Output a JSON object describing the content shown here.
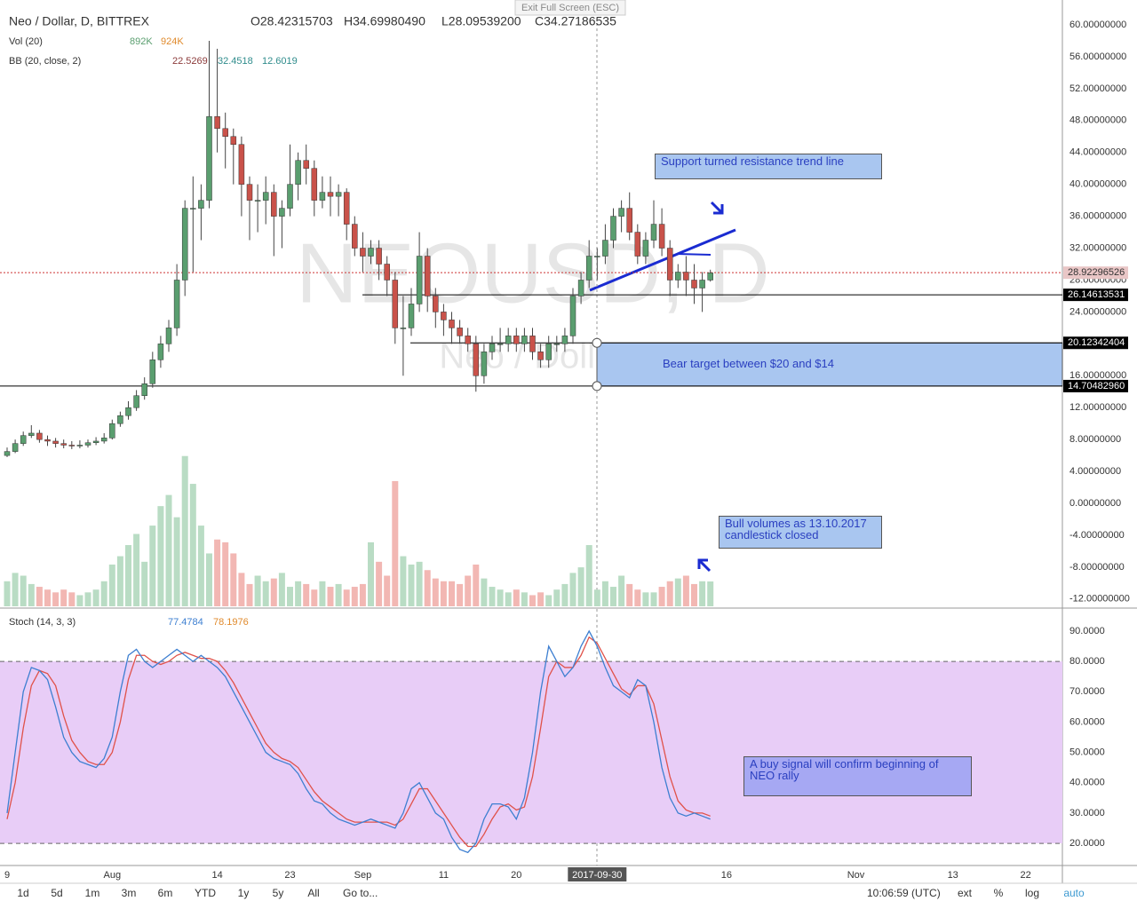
{
  "window": {
    "exit_fullscreen": "Exit Full Screen (ESC)"
  },
  "chart_data": {
    "type": "candlestick",
    "title": "Neo / Dollar, D, BITTREX",
    "watermark": "NEOUSD, D",
    "watermark_sub": "Neo / Dollar",
    "ohlc_legend": [
      "O28.42315703",
      "H34.69980490",
      "L28.09539200",
      "C34.27186535"
    ],
    "volume_legend": {
      "label": "Vol (20)",
      "values": [
        "892K",
        "924K"
      ]
    },
    "bb_legend": {
      "label": "BB (20, close, 2)",
      "values": [
        "22.5269",
        "32.4518",
        "12.6019"
      ]
    },
    "up_color": "#5a9e6f",
    "down_color": "#c9524a",
    "candles": [
      [
        6,
        7,
        5.8,
        6.5
      ],
      [
        6.5,
        8,
        6.3,
        7.5
      ],
      [
        7.5,
        9,
        7.2,
        8.5
      ],
      [
        8.5,
        9.8,
        8.2,
        8.8
      ],
      [
        8.8,
        9.2,
        7.6,
        8
      ],
      [
        8,
        8.5,
        7.2,
        7.8
      ],
      [
        7.8,
        8.2,
        7,
        7.5
      ],
      [
        7.5,
        8,
        6.9,
        7.3
      ],
      [
        7.3,
        7.8,
        6.8,
        7.2
      ],
      [
        7.2,
        7.9,
        6.9,
        7.3
      ],
      [
        7.3,
        8,
        7,
        7.6
      ],
      [
        7.6,
        8.3,
        7.3,
        7.8
      ],
      [
        7.8,
        8.8,
        7.5,
        8.2
      ],
      [
        8.2,
        10.5,
        8,
        10
      ],
      [
        10,
        11.5,
        9.6,
        11
      ],
      [
        11,
        12.8,
        10.5,
        12
      ],
      [
        12,
        14.2,
        11.6,
        13.5
      ],
      [
        13.5,
        15.8,
        13,
        15
      ],
      [
        15,
        19,
        14.5,
        18
      ],
      [
        18,
        21,
        17,
        20
      ],
      [
        20,
        23,
        19,
        22
      ],
      [
        22,
        30,
        21,
        28
      ],
      [
        28,
        38,
        26,
        37
      ],
      [
        37,
        41,
        29,
        37
      ],
      [
        37,
        40,
        33,
        38
      ],
      [
        38,
        58,
        37,
        48.5
      ],
      [
        48.5,
        57,
        44,
        47
      ],
      [
        47,
        49,
        42,
        46
      ],
      [
        46,
        47,
        40,
        45
      ],
      [
        45,
        46,
        36,
        40
      ],
      [
        40,
        41,
        33,
        38
      ],
      [
        38,
        40,
        34,
        38
      ],
      [
        38,
        41,
        35,
        39
      ],
      [
        39,
        40,
        31,
        36
      ],
      [
        36,
        38,
        32,
        37
      ],
      [
        37,
        45,
        36,
        40
      ],
      [
        40,
        44,
        38,
        43
      ],
      [
        43,
        45,
        40,
        42
      ],
      [
        42,
        43,
        36,
        38
      ],
      [
        38,
        41,
        37,
        39
      ],
      [
        39,
        41,
        36,
        38.5
      ],
      [
        38.5,
        40,
        36,
        39
      ],
      [
        39,
        39.5,
        33,
        35
      ],
      [
        35,
        36,
        31,
        32
      ],
      [
        32,
        34,
        29,
        31
      ],
      [
        31,
        33,
        30,
        32
      ],
      [
        32,
        33,
        28,
        30
      ],
      [
        30,
        31,
        26,
        28
      ],
      [
        28,
        29,
        20,
        22
      ],
      [
        22,
        26,
        16,
        22
      ],
      [
        22,
        27,
        21,
        25
      ],
      [
        25,
        34,
        24,
        31
      ],
      [
        31,
        32,
        24,
        26
      ],
      [
        26,
        27,
        22,
        24
      ],
      [
        24,
        25,
        21,
        23
      ],
      [
        23,
        24,
        20,
        22
      ],
      [
        22,
        23,
        20,
        21
      ],
      [
        21,
        22,
        19,
        20
      ],
      [
        20,
        21,
        14,
        16
      ],
      [
        16,
        20,
        15,
        19
      ],
      [
        19,
        21,
        18,
        20
      ],
      [
        20,
        22,
        19,
        20
      ],
      [
        20,
        22,
        19,
        21
      ],
      [
        21,
        22,
        19,
        20
      ],
      [
        20,
        22,
        19,
        21
      ],
      [
        21,
        22,
        18,
        19
      ],
      [
        19,
        20,
        17,
        18
      ],
      [
        18,
        21,
        17,
        20
      ],
      [
        20,
        21,
        19,
        20
      ],
      [
        20,
        22,
        19,
        21
      ],
      [
        21,
        27,
        20,
        26
      ],
      [
        26,
        29,
        25,
        28
      ],
      [
        28,
        33,
        27,
        31
      ],
      [
        31,
        32,
        28,
        31
      ],
      [
        31,
        35,
        30,
        33
      ],
      [
        33,
        37,
        32,
        36
      ],
      [
        36,
        38,
        34,
        37
      ],
      [
        37,
        39,
        33,
        34
      ],
      [
        34,
        35,
        30,
        31
      ],
      [
        31,
        34,
        30,
        33
      ],
      [
        33,
        38,
        32,
        35
      ],
      [
        35,
        37,
        31,
        32
      ],
      [
        32,
        33,
        26,
        28
      ],
      [
        28,
        30,
        27,
        29
      ],
      [
        29,
        31,
        26,
        28
      ],
      [
        28,
        30,
        25,
        27
      ],
      [
        27,
        29,
        24,
        28
      ],
      [
        28,
        29.3,
        27.8,
        28.9
      ]
    ],
    "volume": [
      900,
      1200,
      1100,
      800,
      700,
      600,
      500,
      600,
      500,
      400,
      500,
      600,
      900,
      1500,
      1800,
      2200,
      2600,
      1600,
      2900,
      3600,
      4000,
      3200,
      5400,
      4400,
      2900,
      1900,
      2400,
      2300,
      1900,
      1200,
      800,
      1100,
      900,
      1000,
      1200,
      700,
      900,
      800,
      600,
      900,
      700,
      800,
      600,
      700,
      800,
      2300,
      1600,
      1100,
      4500,
      1800,
      1500,
      1600,
      1300,
      1000,
      900,
      900,
      800,
      1100,
      1500,
      1000,
      700,
      600,
      500,
      600,
      500,
      400,
      500,
      400,
      600,
      800,
      1200,
      1400,
      2200,
      600,
      900,
      700,
      1100,
      800,
      600,
      500,
      500,
      700,
      900,
      1000,
      1100,
      800,
      900,
      892
    ],
    "ylim": [
      -12.91,
      62.56
    ],
    "yticks": [
      {
        "value": 60,
        "label": "60.00000000"
      },
      {
        "value": 56,
        "label": "56.00000000"
      },
      {
        "value": 52,
        "label": "52.00000000"
      },
      {
        "value": 48,
        "label": "48.00000000"
      },
      {
        "value": 44,
        "label": "44.00000000"
      },
      {
        "value": 40,
        "label": "40.00000000"
      },
      {
        "value": 36,
        "label": "36.00000000"
      },
      {
        "value": 32,
        "label": "32.00000000"
      },
      {
        "value": 28,
        "label": "28.00000000"
      },
      {
        "value": 24,
        "label": "24.00000000"
      },
      {
        "value": 20,
        "label": "20.00000000"
      },
      {
        "value": 16,
        "label": "16.00000000"
      },
      {
        "value": 12,
        "label": "12.00000000"
      },
      {
        "value": 8,
        "label": "8.00000000"
      },
      {
        "value": 4,
        "label": "4.00000000"
      },
      {
        "value": 0,
        "label": "0.00000000"
      },
      {
        "value": -4,
        "label": "-4.00000000"
      },
      {
        "value": -8,
        "label": "-8.00000000"
      },
      {
        "value": -12,
        "label": "-12.00000000"
      }
    ],
    "price_lines": [
      28.92296526,
      26.14613531,
      20.12342404,
      {
        "value": 14.7048296,
        "label": "14.70482960"
      }
    ],
    "xticks": [
      {
        "value": 0,
        "label": "9"
      },
      {
        "value": 13,
        "label": "Aug"
      },
      {
        "value": 26,
        "label": "14"
      },
      {
        "value": 35,
        "label": "23"
      },
      {
        "value": 44,
        "label": "Sep"
      },
      {
        "value": 54,
        "label": "11"
      },
      {
        "value": 63,
        "label": "20"
      },
      {
        "value": 73,
        "label": "2017-09-30"
      },
      {
        "value": 89,
        "label": "16"
      },
      {
        "value": 105,
        "label": "Nov"
      },
      {
        "value": 117,
        "label": "13"
      },
      {
        "value": 126,
        "label": "22"
      }
    ],
    "annotations": [
      "Support turned resistance trend line",
      "Bear target between $20 and $14",
      "Bull volumes as 13.10.2017 candlestick closed",
      "A buy signal will confirm beginning of NEO rally"
    ],
    "stoch": {
      "title": "Stoch (14, 3, 3)",
      "legend": [
        "77.4784",
        "78.1976"
      ],
      "k_color": "#3d7fd1",
      "d_color": "#e0524a",
      "k": [
        30,
        50,
        70,
        78,
        77,
        74,
        65,
        55,
        50,
        47,
        46,
        45,
        48,
        55,
        70,
        82,
        84,
        80,
        78,
        80,
        82,
        84,
        82,
        80,
        82,
        80,
        78,
        75,
        70,
        65,
        60,
        55,
        50,
        48,
        47,
        46,
        43,
        38,
        34,
        33,
        30,
        28,
        27,
        26,
        27,
        28,
        27,
        26,
        25,
        30,
        38,
        40,
        35,
        30,
        28,
        22,
        18,
        17,
        20,
        28,
        33,
        33,
        32,
        28,
        35,
        50,
        70,
        85,
        80,
        75,
        78,
        85,
        90,
        85,
        78,
        72,
        70,
        68,
        74,
        72,
        60,
        45,
        35,
        30,
        29,
        30,
        29,
        28
      ],
      "d": [
        28,
        40,
        58,
        72,
        77,
        76,
        72,
        62,
        54,
        50,
        47,
        46,
        46,
        50,
        60,
        74,
        82,
        82,
        80,
        79,
        80,
        82,
        83,
        82,
        81,
        81,
        80,
        77,
        73,
        68,
        63,
        58,
        53,
        50,
        48,
        47,
        45,
        41,
        37,
        34,
        32,
        30,
        28,
        27,
        27,
        27,
        27,
        27,
        26,
        28,
        33,
        38,
        38,
        34,
        30,
        26,
        22,
        19,
        19,
        23,
        28,
        32,
        33,
        31,
        32,
        42,
        58,
        75,
        80,
        78,
        78,
        82,
        88,
        86,
        81,
        76,
        71,
        69,
        72,
        72,
        66,
        54,
        42,
        34,
        31,
        30,
        30,
        29
      ],
      "ylim": [
        12.7,
        97.3
      ],
      "yticks": [
        {
          "value": 90,
          "label": "90.0000"
        },
        {
          "value": 80,
          "label": "80.0000"
        },
        {
          "value": 70,
          "label": "70.0000"
        },
        {
          "value": 60,
          "label": "60.0000"
        },
        {
          "value": 50,
          "label": "50.0000"
        },
        {
          "value": 40,
          "label": "40.0000"
        },
        {
          "value": 30,
          "label": "30.0000"
        },
        {
          "value": 20,
          "label": "20.0000"
        }
      ],
      "bands": [
        20,
        80
      ]
    }
  },
  "toolbar": {
    "ranges": [
      "1d",
      "5d",
      "1m",
      "3m",
      "6m",
      "YTD",
      "1y",
      "5y",
      "All"
    ],
    "goto": "Go to...",
    "time": "10:06:59 (UTC)",
    "options": [
      "ext",
      "%",
      "log",
      "auto"
    ]
  }
}
